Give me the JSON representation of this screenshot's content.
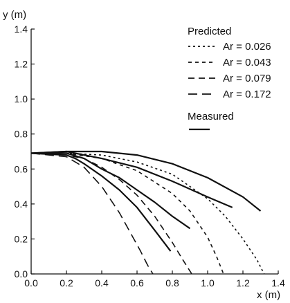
{
  "chart_data": {
    "type": "line",
    "xlabel": "x (m)",
    "ylabel": "y (m)",
    "xlim": [
      0.0,
      1.4
    ],
    "ylim": [
      0.0,
      1.4
    ],
    "xticks": [
      0.0,
      0.2,
      0.4,
      0.6,
      0.8,
      1.0,
      1.2,
      1.4
    ],
    "yticks": [
      0.0,
      0.2,
      0.4,
      0.6,
      0.8,
      1.0,
      1.2,
      1.4
    ],
    "xtick_labels": [
      "0.0",
      "0.2",
      "0.4",
      "0.6",
      "0.8",
      "1.0",
      "1.2",
      "1.4"
    ],
    "ytick_labels": [
      "0.0",
      "0.2",
      "0.4",
      "0.6",
      "0.8",
      "1.0",
      "1.2",
      "1.4"
    ],
    "grid": false,
    "legend_position": "top-right",
    "legend": {
      "predicted_title": "Predicted",
      "measured_title": "Measured"
    },
    "series": [
      {
        "name": "Ar = 0.026",
        "group": "predicted",
        "dash": "3 4",
        "x": [
          0.0,
          0.2,
          0.4,
          0.6,
          0.8,
          1.0,
          1.1,
          1.2,
          1.28,
          1.32
        ],
        "y": [
          0.69,
          0.69,
          0.68,
          0.64,
          0.57,
          0.43,
          0.33,
          0.2,
          0.08,
          0.0
        ]
      },
      {
        "name": "Ar = 0.043",
        "group": "predicted",
        "dash": "5 5",
        "x": [
          0.0,
          0.2,
          0.4,
          0.6,
          0.8,
          0.9,
          1.0,
          1.05,
          1.09
        ],
        "y": [
          0.69,
          0.69,
          0.66,
          0.59,
          0.46,
          0.36,
          0.21,
          0.1,
          0.0
        ]
      },
      {
        "name": "Ar = 0.079",
        "group": "predicted",
        "dash": "9 6",
        "x": [
          0.0,
          0.2,
          0.3,
          0.4,
          0.5,
          0.6,
          0.7,
          0.8,
          0.86,
          0.91
        ],
        "y": [
          0.69,
          0.68,
          0.66,
          0.61,
          0.54,
          0.45,
          0.33,
          0.18,
          0.08,
          0.0
        ]
      },
      {
        "name": "Ar = 0.172",
        "group": "predicted",
        "dash": "13 7",
        "x": [
          0.0,
          0.2,
          0.3,
          0.4,
          0.5,
          0.56,
          0.62,
          0.66,
          0.69
        ],
        "y": [
          0.69,
          0.67,
          0.61,
          0.5,
          0.35,
          0.24,
          0.13,
          0.05,
          0.0
        ]
      },
      {
        "name": "Measured (Ar = 0.026)",
        "group": "measured",
        "x": [
          0.0,
          0.2,
          0.4,
          0.6,
          0.8,
          1.0,
          1.2,
          1.3
        ],
        "y": [
          0.69,
          0.7,
          0.7,
          0.68,
          0.63,
          0.55,
          0.44,
          0.36
        ]
      },
      {
        "name": "Measured (Ar = 0.043)",
        "group": "measured",
        "x": [
          0.0,
          0.2,
          0.3,
          0.4,
          0.6,
          0.8,
          1.0,
          1.14
        ],
        "y": [
          0.69,
          0.7,
          0.68,
          0.66,
          0.61,
          0.53,
          0.44,
          0.38
        ]
      },
      {
        "name": "Measured (Ar = 0.079)",
        "group": "measured",
        "x": [
          0.0,
          0.2,
          0.3,
          0.4,
          0.5,
          0.6,
          0.7,
          0.8,
          0.9
        ],
        "y": [
          0.69,
          0.69,
          0.66,
          0.6,
          0.55,
          0.48,
          0.41,
          0.33,
          0.26
        ]
      },
      {
        "name": "Measured (Ar = 0.172)",
        "group": "measured",
        "x": [
          0.0,
          0.2,
          0.25,
          0.3,
          0.4,
          0.5,
          0.6,
          0.7,
          0.79
        ],
        "y": [
          0.69,
          0.68,
          0.66,
          0.63,
          0.56,
          0.48,
          0.38,
          0.25,
          0.13
        ]
      }
    ]
  }
}
